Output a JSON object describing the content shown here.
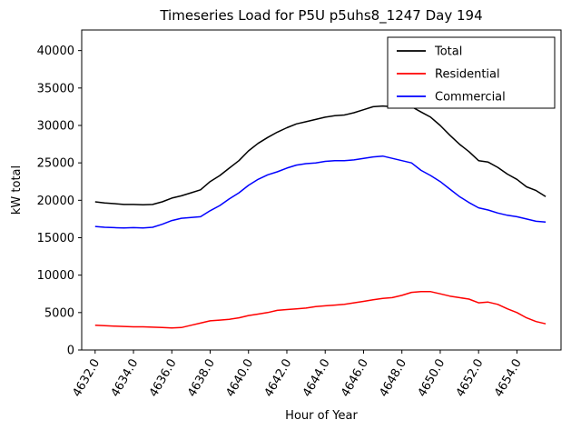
{
  "chart_data": {
    "type": "line",
    "title": "Timeseries Load for P5U p5uhs8_1247  Day 194",
    "xlabel": "Hour of Year",
    "ylabel": "kW total",
    "xlim": [
      4631.3,
      4656.3
    ],
    "ylim": [
      0,
      42750
    ],
    "grid": false,
    "legend_position": "upper right",
    "xticks": {
      "values": [
        4632,
        4634,
        4636,
        4638,
        4640,
        4642,
        4644,
        4646,
        4648,
        4650,
        4652,
        4654
      ],
      "labels": [
        "4632.0",
        "4634.0",
        "4636.0",
        "4638.0",
        "4640.0",
        "4642.0",
        "4644.0",
        "4646.0",
        "4648.0",
        "4650.0",
        "4652.0",
        "4654.0"
      ]
    },
    "yticks": {
      "values": [
        0,
        5000,
        10000,
        15000,
        20000,
        25000,
        30000,
        35000,
        40000
      ],
      "labels": [
        "0",
        "5000",
        "10000",
        "15000",
        "20000",
        "25000",
        "30000",
        "35000",
        "40000"
      ]
    },
    "x": [
      4632.0,
      4632.5,
      4633.0,
      4633.5,
      4634.0,
      4634.5,
      4635.0,
      4635.5,
      4636.0,
      4636.5,
      4637.0,
      4637.5,
      4638.0,
      4638.5,
      4639.0,
      4639.5,
      4640.0,
      4640.5,
      4641.0,
      4641.5,
      4642.0,
      4642.5,
      4643.0,
      4643.5,
      4644.0,
      4644.5,
      4645.0,
      4645.5,
      4646.0,
      4646.5,
      4647.0,
      4647.5,
      4648.0,
      4648.5,
      4649.0,
      4649.5,
      4650.0,
      4650.5,
      4651.0,
      4651.5,
      4652.0,
      4652.5,
      4653.0,
      4653.5,
      4654.0,
      4654.5,
      4655.0,
      4655.5
    ],
    "series": [
      {
        "name": "Total",
        "color": "#000000",
        "values": [
          19800,
          19650,
          19550,
          19450,
          19450,
          19400,
          19450,
          19800,
          20300,
          20600,
          21000,
          21400,
          22500,
          23300,
          24300,
          25300,
          26600,
          27600,
          28400,
          29100,
          29700,
          30200,
          30500,
          30800,
          31100,
          31300,
          31400,
          31700,
          32100,
          32500,
          32600,
          32500,
          32400,
          32500,
          31800,
          31100,
          30000,
          28700,
          27500,
          26500,
          25300,
          25100,
          24400,
          23500,
          22800,
          21800,
          21300,
          20500
        ]
      },
      {
        "name": "Residential",
        "color": "#ff0000",
        "values": [
          3300,
          3250,
          3200,
          3150,
          3100,
          3100,
          3050,
          3000,
          2950,
          3000,
          3300,
          3600,
          3900,
          4000,
          4100,
          4300,
          4600,
          4800,
          5000,
          5300,
          5400,
          5500,
          5600,
          5800,
          5900,
          6000,
          6100,
          6300,
          6500,
          6700,
          6900,
          7000,
          7300,
          7700,
          7800,
          7800,
          7500,
          7200,
          7000,
          6800,
          6300,
          6400,
          6100,
          5500,
          5000,
          4300,
          3800,
          3500
        ]
      },
      {
        "name": "Commercial",
        "color": "#0000ff",
        "values": [
          16500,
          16400,
          16350,
          16300,
          16350,
          16300,
          16400,
          16800,
          17300,
          17600,
          17700,
          17800,
          18600,
          19300,
          20200,
          21000,
          22000,
          22800,
          23400,
          23800,
          24300,
          24700,
          24900,
          25000,
          25200,
          25300,
          25300,
          25400,
          25600,
          25800,
          25900,
          25600,
          25300,
          25000,
          24000,
          23300,
          22500,
          21500,
          20500,
          19700,
          19000,
          18700,
          18300,
          18000,
          17800,
          17500,
          17200,
          17100
        ]
      }
    ]
  }
}
